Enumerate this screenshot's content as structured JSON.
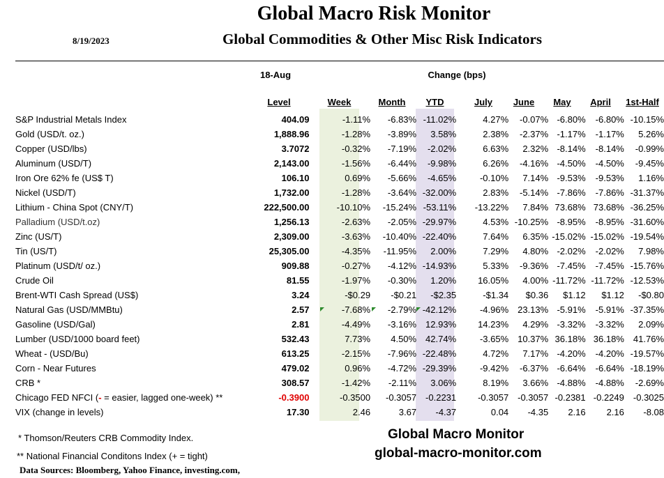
{
  "header": {
    "title": "Global Macro Risk Monitor",
    "subtitle": "Global Commodities & Other Misc Risk Indicators",
    "date": "8/19/2023"
  },
  "table": {
    "level_date": "18-Aug",
    "change_label": "Change (bps)",
    "columns": [
      "Level",
      "Week",
      "Month",
      "YTD",
      "July",
      "June",
      "May",
      "April",
      "1st-Half"
    ],
    "rows": [
      {
        "name": "S&P Industrial Metals Index",
        "level": "404.09",
        "week": "-1.11%",
        "month": "-6.83%",
        "ytd": "-11.02%",
        "july": "4.27%",
        "june": "-0.07%",
        "may": "-6.80%",
        "april": "-6.80%",
        "half": "-10.15%"
      },
      {
        "name": "Gold (USD/t. oz.)",
        "level": "1,888.96",
        "week": "-1.28%",
        "month": "-3.89%",
        "ytd": "3.58%",
        "july": "2.38%",
        "june": "-2.37%",
        "may": "-1.17%",
        "april": "-1.17%",
        "half": "5.26%"
      },
      {
        "name": "Copper (USD/lbs)",
        "level": "3.7072",
        "week": "-0.32%",
        "month": "-7.19%",
        "ytd": "-2.02%",
        "july": "6.63%",
        "june": "2.32%",
        "may": "-8.14%",
        "april": "-8.14%",
        "half": "-0.99%"
      },
      {
        "name": "Aluminum (USD/T)",
        "level": "2,143.00",
        "week": "-1.56%",
        "month": "-6.44%",
        "ytd": "-9.98%",
        "july": "6.26%",
        "june": "-4.16%",
        "may": "-4.50%",
        "april": "-4.50%",
        "half": "-9.45%"
      },
      {
        "name": "Iron Ore 62% fe (US$ T)",
        "level": "106.10",
        "week": "0.69%",
        "month": "-5.66%",
        "ytd": "-4.65%",
        "july": "-0.10%",
        "june": "7.14%",
        "may": "-9.53%",
        "april": "-9.53%",
        "half": "1.16%"
      },
      {
        "name": "Nickel (USD/T)",
        "level": "1,732.00",
        "week": "-1.28%",
        "month": "-3.64%",
        "ytd": "-32.00%",
        "july": "2.83%",
        "june": "-5.14%",
        "may": "-7.86%",
        "april": "-7.86%",
        "half": "-31.37%"
      },
      {
        "name": "Lithium - China Spot (CNY/T)",
        "level": "222,500.00",
        "week": "-10.10%",
        "month": "-15.24%",
        "ytd": "-53.11%",
        "july": "-13.22%",
        "june": "7.84%",
        "may": "73.68%",
        "april": "73.68%",
        "half": "-36.25%"
      },
      {
        "name": "Palladium (USD/t.oz)",
        "level": "1,256.13",
        "week": "-2.63%",
        "month": "-2.05%",
        "ytd": "-29.97%",
        "july": "4.53%",
        "june": "-10.25%",
        "may": "-8.95%",
        "april": "-8.95%",
        "half": "-31.60%"
      },
      {
        "name": "Zinc (US/T)",
        "level": "2,309.00",
        "week": "-3.63%",
        "month": "-10.40%",
        "ytd": "-22.40%",
        "july": "7.64%",
        "june": "6.35%",
        "may": "-15.02%",
        "april": "-15.02%",
        "half": "-19.54%"
      },
      {
        "name": "Tin (US/T)",
        "level": "25,305.00",
        "week": "-4.35%",
        "month": "-11.95%",
        "ytd": "2.00%",
        "july": "7.29%",
        "june": "4.80%",
        "may": "-2.02%",
        "april": "-2.02%",
        "half": "7.98%"
      },
      {
        "name": "Platinum (USD/t/ oz.)",
        "level": "909.88",
        "week": "-0.27%",
        "month": "-4.12%",
        "ytd": "-14.93%",
        "july": "5.33%",
        "june": "-9.36%",
        "may": "-7.45%",
        "april": "-7.45%",
        "half": "-15.76%"
      },
      {
        "name": "Crude Oil",
        "level": "81.55",
        "week": "-1.97%",
        "month": "-0.30%",
        "ytd": "1.20%",
        "july": "16.05%",
        "june": "4.00%",
        "may": "-11.72%",
        "april": "-11.72%",
        "half": "-12.53%"
      },
      {
        "name": "Brent-WTI Cash Spread (US$)",
        "level": "3.24",
        "week": "-$0.29",
        "month": "-$0.21",
        "ytd": "-$2.35",
        "july": "-$1.34",
        "june": "$0.36",
        "may": "$1.12",
        "april": "$1.12",
        "half": "-$0.80"
      },
      {
        "name": "Natural Gas (USD/MMBtu)",
        "level": "2.57",
        "week": "-7.68%",
        "month": "-2.79%",
        "ytd": "-42.12%",
        "july": "-4.96%",
        "june": "23.13%",
        "may": "-5.91%",
        "april": "-5.91%",
        "half": "-37.35%"
      },
      {
        "name": "Gasoline (USD/Gal)",
        "level": "2.81",
        "week": "-4.49%",
        "month": "-3.16%",
        "ytd": "12.93%",
        "july": "14.23%",
        "june": "4.29%",
        "may": "-3.32%",
        "april": "-3.32%",
        "half": "2.09%"
      },
      {
        "name": "Lumber (USD/1000 board feet)",
        "level": "532.43",
        "week": "7.73%",
        "month": "4.50%",
        "ytd": "42.74%",
        "july": "-3.65%",
        "june": "10.37%",
        "may": "36.18%",
        "april": "36.18%",
        "half": "41.76%"
      },
      {
        "name": "Wheat - (USD/Bu)",
        "level": "613.25",
        "week": "-2.15%",
        "month": "-7.96%",
        "ytd": "-22.48%",
        "july": "4.72%",
        "june": "7.17%",
        "may": "-4.20%",
        "april": "-4.20%",
        "half": "-19.57%"
      },
      {
        "name": "Corn - Near Futures",
        "level": "479.02",
        "week": "0.96%",
        "month": "-4.72%",
        "ytd": "-29.39%",
        "july": "-9.42%",
        "june": "-6.37%",
        "may": "-6.64%",
        "april": "-6.64%",
        "half": "-18.19%"
      },
      {
        "name": "CRB *",
        "level": "308.57",
        "week": "-1.42%",
        "month": "-2.11%",
        "ytd": "3.06%",
        "july": "8.19%",
        "june": "3.66%",
        "may": "-4.88%",
        "april": "-4.88%",
        "half": "-2.69%"
      },
      {
        "name_pre": "Chicago FED NFCI (",
        "name_sign": "-",
        "name_post": " = easier, lagged one-week) **",
        "level": "-0.3900",
        "week": "-0.3500",
        "month": "-0.3057",
        "ytd": "-0.2231",
        "july": "-0.3057",
        "june": "-0.3057",
        "may": "-0.2381",
        "april": "-0.2249",
        "half": "-0.3025"
      },
      {
        "name": "VIX (change in levels)",
        "level": "17.30",
        "week": "2.46",
        "month": "3.67",
        "ytd": "-4.37",
        "july": "0.04",
        "june": "-4.35",
        "may": "2.16",
        "april": "2.16",
        "half": "-8.08"
      }
    ]
  },
  "footer": {
    "note_star": "*     Thomson/Reuters CRB Commodity Index.",
    "note_double_star": "** National Financial Conditons Index (+ =  tight)",
    "sources": "Data Sources:  Bloomberg,  Yahoo Finance, investing.com,",
    "brand_name": "Global Macro Monitor",
    "brand_url": "global-macro-monitor.com"
  }
}
